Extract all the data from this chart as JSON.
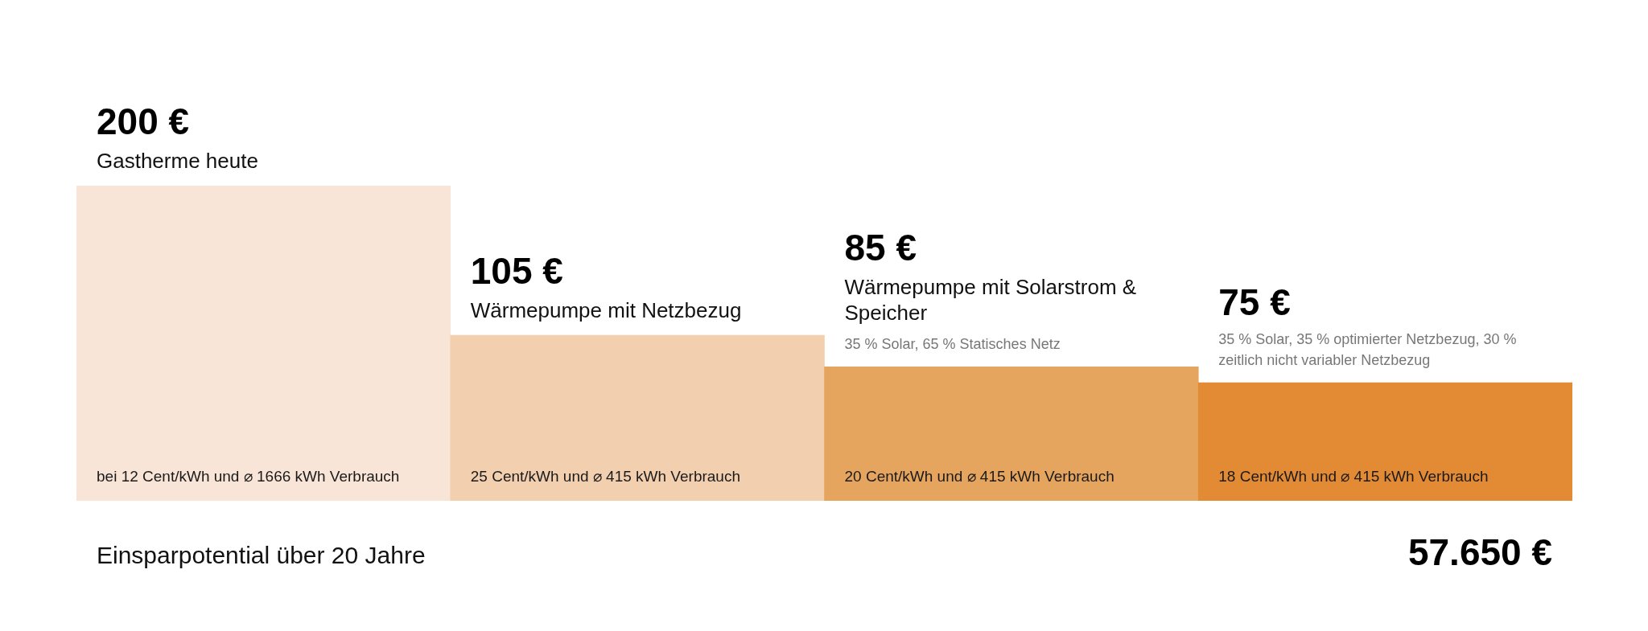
{
  "chart_data": {
    "type": "bar",
    "categories": [
      "Gastherme heute",
      "Wärmepumpe mit Netzbezug",
      "Wärmepumpe mit Solarstrom & Speicher",
      null
    ],
    "values": [
      200,
      105,
      85,
      75
    ],
    "colors": [
      "#f9e5d7",
      "#f2d0af",
      "#e6a55f",
      "#e38a35"
    ],
    "value_labels": [
      "200 €",
      "105 €",
      "85 €",
      "75 €"
    ],
    "annotations": [
      "bei 12 Cent/kWh und ⌀ 1666 kWh Verbrauch",
      "25 Cent/kWh und ⌀ 415 kWh Verbrauch",
      "20 Cent/kWh und ⌀ 415 kWh Verbrauch",
      "18 Cent/kWh und ⌀ 415 kWh Verbrauch",
      "35 % Solar, 65 % Statisches Netz",
      "35 % Solar, 35 % optimierter Netzbezug, 30 % zeitlich nicht variabler Netzbezug",
      "Einsparpotential über 20 Jahre",
      "57.650 €"
    ],
    "legend": false
  }
}
